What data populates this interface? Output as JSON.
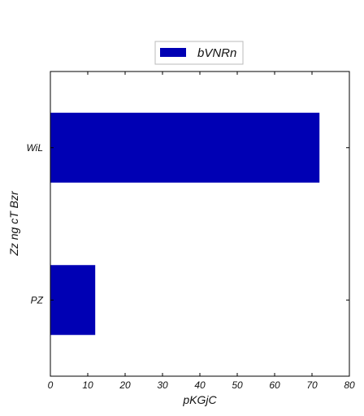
{
  "chart_data": {
    "type": "bar",
    "orientation": "horizontal",
    "categories": [
      "WiL",
      "PZ"
    ],
    "series": [
      {
        "name": "bVNRn",
        "values": [
          72,
          12
        ],
        "color": "#0000b4"
      }
    ],
    "xlabel": "pKGjC",
    "ylabel": "Zz ng  cT  Bzr",
    "xlim": [
      0,
      80
    ],
    "xticks": [
      "0",
      "10",
      "20",
      "30",
      "40",
      "50",
      "60",
      "70",
      "80"
    ],
    "grid": false,
    "legend_position": "top-center"
  }
}
